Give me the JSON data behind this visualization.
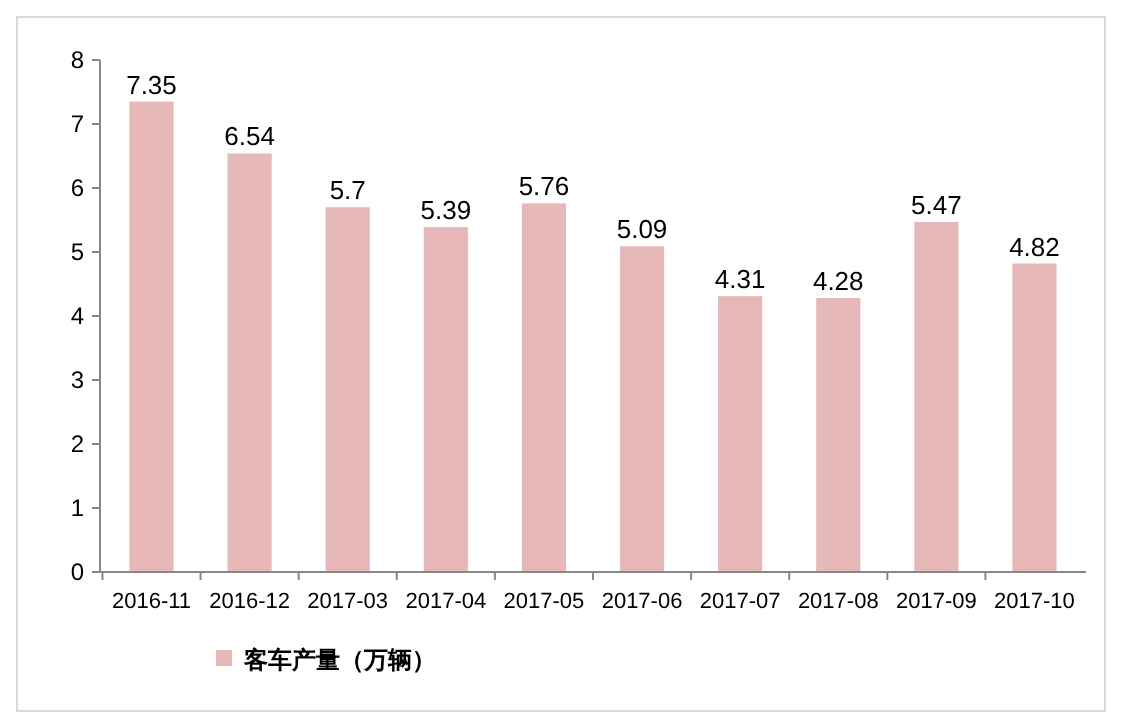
{
  "chart_data": {
    "type": "bar",
    "categories": [
      "2016-11",
      "2016-12",
      "2017-03",
      "2017-04",
      "2017-05",
      "2017-06",
      "2017-07",
      "2017-08",
      "2017-09",
      "2017-10"
    ],
    "series": [
      {
        "name": "客车产量（万辆）",
        "color": "#e6b8b7",
        "values": [
          7.35,
          6.54,
          5.7,
          5.39,
          5.76,
          5.09,
          4.31,
          4.28,
          5.47,
          4.82
        ]
      }
    ],
    "ylim": [
      0,
      8
    ],
    "yticks": [
      0,
      1,
      2,
      3,
      4,
      5,
      6,
      7,
      8
    ],
    "data_labels": true,
    "legend": "bottom",
    "grid": false
  }
}
